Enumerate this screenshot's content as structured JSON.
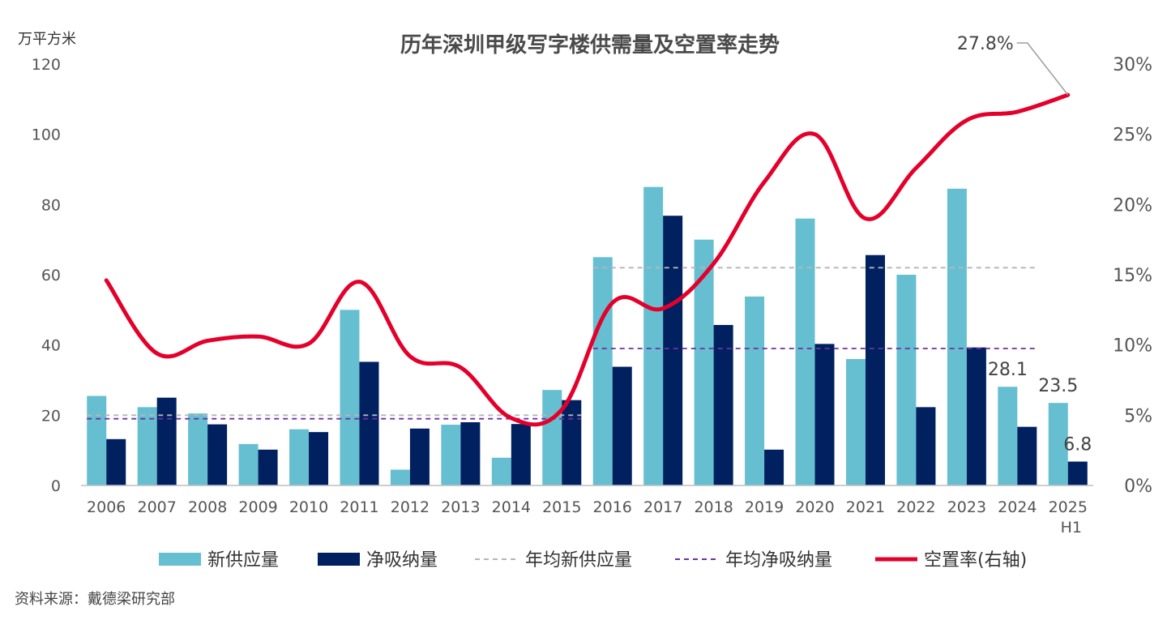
{
  "chart_data": {
    "type": "bar",
    "title": "历年深圳甲级写字楼供需量及空置率走势",
    "ylabel": "万平方米",
    "ylim": [
      0,
      120
    ],
    "yticks": [
      "0",
      "20",
      "40",
      "60",
      "80",
      "100",
      "120"
    ],
    "y2lim": [
      0,
      30
    ],
    "y2ticks": [
      "0%",
      "5%",
      "10%",
      "15%",
      "20%",
      "25%",
      "30%"
    ],
    "categories": [
      "2006",
      "2007",
      "2008",
      "2009",
      "2010",
      "2011",
      "2012",
      "2013",
      "2014",
      "2015",
      "2016",
      "2017",
      "2018",
      "2019",
      "2020",
      "2021",
      "2022",
      "2023",
      "2024",
      "2025"
    ],
    "category_sublabels": {
      "2025": "H1"
    },
    "series": [
      {
        "name": "新供应量",
        "type": "bar",
        "color": "#66bfd1",
        "values": [
          25.5,
          22.3,
          20.5,
          11.8,
          16.0,
          50.0,
          4.5,
          17.3,
          7.9,
          27.2,
          65.0,
          85.0,
          70.0,
          53.8,
          76.0,
          36.0,
          60.0,
          84.5,
          28.1,
          23.5
        ]
      },
      {
        "name": "净吸纳量",
        "type": "bar",
        "color": "#002060",
        "values": [
          13.2,
          25.0,
          17.4,
          10.2,
          15.2,
          35.2,
          16.2,
          18.0,
          17.5,
          24.3,
          33.8,
          76.8,
          45.7,
          10.2,
          40.3,
          65.6,
          22.3,
          39.3,
          16.7,
          6.8
        ]
      },
      {
        "name": "年均新供应量",
        "type": "dashed",
        "color": "#b5b5b5",
        "segments": [
          {
            "from": "2006",
            "to": "2015",
            "value": 20.0
          },
          {
            "from": "2016",
            "to": "2024",
            "value": 62.0
          }
        ]
      },
      {
        "name": "年均净吸纳量",
        "type": "dashed",
        "color": "#7030a0",
        "segments": [
          {
            "from": "2006",
            "to": "2015",
            "value": 19.0
          },
          {
            "from": "2016",
            "to": "2024",
            "value": 39.0
          }
        ]
      },
      {
        "name": "空置率(右轴)",
        "type": "line",
        "color": "#e4002b",
        "axis": "right",
        "values": [
          14.6,
          9.4,
          10.3,
          10.6,
          10.1,
          14.5,
          9.2,
          8.4,
          4.8,
          5.4,
          13.0,
          12.6,
          15.8,
          21.6,
          25.0,
          19.0,
          22.6,
          26.0,
          26.6,
          27.8
        ]
      }
    ],
    "annotations": [
      {
        "category": "2024",
        "series": "新供应量",
        "text": "28.1"
      },
      {
        "category": "2025",
        "series": "新供应量",
        "text": "23.5"
      },
      {
        "category": "2025",
        "series": "净吸纳量",
        "text": "6.8"
      },
      {
        "category": "2025",
        "series": "空置率(右轴)",
        "text": "27.8%"
      }
    ],
    "legend_position": "bottom",
    "grid": false
  },
  "source": "资料来源：戴德梁研究部"
}
